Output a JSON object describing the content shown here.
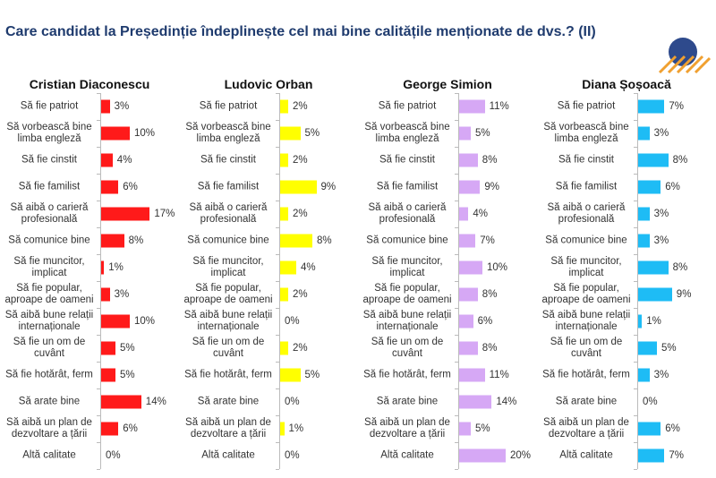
{
  "title": "Care candidat la Președinție îndeplinește cel mai bine calitățile menționate de dvs.? (II)",
  "chart_data": {
    "type": "bar",
    "orientation": "horizontal",
    "categories": [
      "Să fie patriot",
      "Să vorbească bine\nlimba engleză",
      "Să fie cinstit",
      "Să fie familist",
      "Să aibă o carieră\nprofesională",
      "Să comunice bine",
      "Să fie muncitor,\nimplicat",
      "Să fie popular,\naproape de oameni",
      "Să aibă bune relații\ninternaționale",
      "Să fie un om de cuvânt",
      "Să fie hotărât, ferm",
      "Să arate bine",
      "Să aibă un plan de\ndezvoltare a țării",
      "Altă calitate"
    ],
    "unit": "%",
    "grid": false,
    "charts": [
      {
        "title": "Cristian Diaconescu",
        "color": "#ff1a1a",
        "values": [
          3,
          10,
          4,
          6,
          17,
          8,
          1,
          3,
          10,
          5,
          5,
          14,
          6,
          0
        ],
        "value_labels": [
          "3%",
          "10%",
          "4%",
          "6%",
          "17%",
          "8%",
          "1%",
          "3%",
          "10%",
          "5%",
          "5%",
          "14%",
          "6%",
          "0%"
        ]
      },
      {
        "title": "Ludovic Orban",
        "color": "#ffff00",
        "values": [
          2,
          5,
          2,
          9,
          2,
          8,
          4,
          2,
          0,
          2,
          5,
          0,
          1,
          0
        ],
        "value_labels": [
          "2%",
          "5%",
          "2%",
          "9%",
          "2%",
          "8%",
          "4%",
          "2%",
          "0%",
          "2%",
          "5%",
          "0%",
          "1%",
          "0%"
        ]
      },
      {
        "title": "George Simion",
        "color": "#d6a8f5",
        "values": [
          11,
          5,
          8,
          9,
          4,
          7,
          10,
          8,
          6,
          8,
          11,
          14,
          5,
          20
        ],
        "value_labels": [
          "11%",
          "5%",
          "8%",
          "9%",
          "4%",
          "7%",
          "10%",
          "8%",
          "6%",
          "8%",
          "11%",
          "14%",
          "5%",
          "20%"
        ]
      },
      {
        "title": "Diana Șoșoacă",
        "color": "#1ebcf5",
        "values": [
          7,
          3,
          8,
          6,
          3,
          3,
          8,
          9,
          1,
          5,
          3,
          0,
          6,
          7
        ],
        "value_labels": [
          "7%",
          "3%",
          "8%",
          "6%",
          "3%",
          "3%",
          "8%",
          "9%",
          "1%",
          "5%",
          "3%",
          "0%",
          "6%",
          "7%"
        ]
      }
    ]
  }
}
